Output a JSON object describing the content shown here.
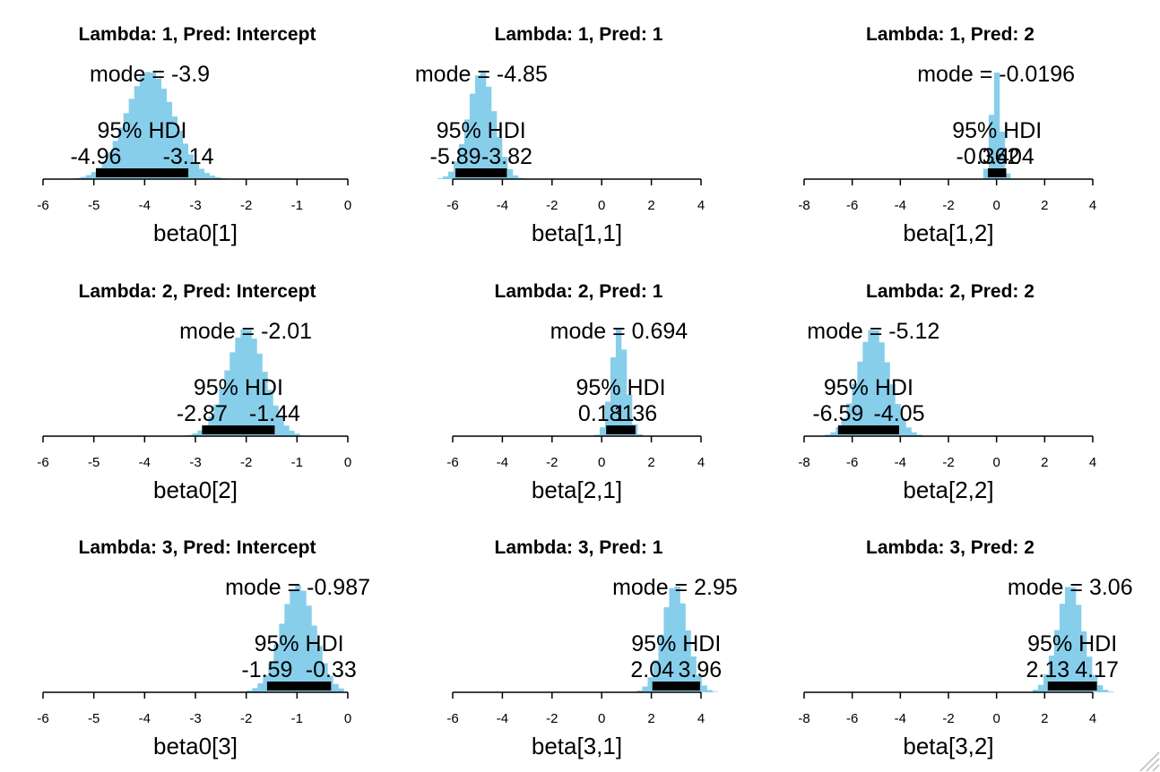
{
  "colors": {
    "histogram": "#87CEEB",
    "hdi_bar": "#000000",
    "axis": "#000000"
  },
  "labels": {
    "mode_prefix": "mode = ",
    "hdi": "95% HDI"
  },
  "icons": {
    "resize_grip": "resize-grip-icon"
  },
  "chart_data": [
    {
      "type": "histogram",
      "title": "Lambda: 1, Pred: Intercept",
      "xlabel": "beta0[1]",
      "xticks": [
        "-6",
        "-5",
        "-4",
        "-3",
        "-2",
        "-1",
        "0"
      ],
      "xlim": [
        -6,
        0
      ],
      "mode": -3.9,
      "mode_label": "-3.9",
      "hdi": [
        -4.96,
        -3.14
      ],
      "hdi_labels": [
        "-4.96",
        "-3.14"
      ],
      "sd": 0.47,
      "dist_range": [
        -5.9,
        -2.2
      ]
    },
    {
      "type": "histogram",
      "title": "Lambda: 1, Pred: 1",
      "xlabel": "beta[1,1]",
      "xticks": [
        "-6",
        "-4",
        "-2",
        "0",
        "2",
        "4"
      ],
      "xlim": [
        -6,
        4
      ],
      "mode": -4.85,
      "mode_label": "-4.85",
      "hdi": [
        -5.89,
        -3.82
      ],
      "hdi_labels": [
        "-5.89",
        "-3.82"
      ],
      "sd": 0.53,
      "dist_range": [
        -7.7,
        -2.7
      ]
    },
    {
      "type": "histogram",
      "title": "Lambda: 1, Pred: 2",
      "xlabel": "beta[1,2]",
      "xticks": [
        "-8",
        "-6",
        "-4",
        "-2",
        "0",
        "2",
        "4"
      ],
      "xlim": [
        -8,
        4
      ],
      "mode": -0.0196,
      "mode_label": "-0.0196",
      "hdi": [
        -0.362,
        0.404
      ],
      "hdi_labels": [
        "-0.362",
        "0.404"
      ],
      "sd": 0.195,
      "dist_range": [
        -1.0,
        1.1
      ]
    },
    {
      "type": "histogram",
      "title": "Lambda: 2, Pred: Intercept",
      "xlabel": "beta0[2]",
      "xticks": [
        "-6",
        "-5",
        "-4",
        "-3",
        "-2",
        "-1",
        "0"
      ],
      "xlim": [
        -6,
        0
      ],
      "mode": -2.01,
      "mode_label": "-2.01",
      "hdi": [
        -2.87,
        -1.44
      ],
      "hdi_labels": [
        "-2.87",
        "-1.44"
      ],
      "sd": 0.37,
      "dist_range": [
        -3.7,
        -1.0
      ]
    },
    {
      "type": "histogram",
      "title": "Lambda: 2, Pred: 1",
      "xlabel": "beta[2,1]",
      "xticks": [
        "-6",
        "-4",
        "-2",
        "0",
        "2",
        "4"
      ],
      "xlim": [
        -6,
        4
      ],
      "mode": 0.694,
      "mode_label": "0.694",
      "hdi": [
        0.181,
        1.36
      ],
      "hdi_labels": [
        "0.181",
        "1.36"
      ],
      "sd": 0.3,
      "dist_range": [
        -0.3,
        2.2
      ]
    },
    {
      "type": "histogram",
      "title": "Lambda: 2, Pred: 2",
      "xlabel": "beta[2,2]",
      "xticks": [
        "-8",
        "-6",
        "-4",
        "-2",
        "0",
        "2",
        "4"
      ],
      "xlim": [
        -8,
        4
      ],
      "mode": -5.12,
      "mode_label": "-5.12",
      "hdi": [
        -6.59,
        -4.05
      ],
      "hdi_labels": [
        "-6.59",
        "-4.05"
      ],
      "sd": 0.65,
      "dist_range": [
        -7.8,
        -3.0
      ]
    },
    {
      "type": "histogram",
      "title": "Lambda: 3, Pred: Intercept",
      "xlabel": "beta0[3]",
      "xticks": [
        "-6",
        "-5",
        "-4",
        "-3",
        "-2",
        "-1",
        "0"
      ],
      "xlim": [
        -6,
        0
      ],
      "mode": -0.987,
      "mode_label": "-0.987",
      "hdi": [
        -1.59,
        -0.33
      ],
      "hdi_labels": [
        "-1.59",
        "-0.33"
      ],
      "sd": 0.33,
      "dist_range": [
        -2.2,
        -0.1
      ]
    },
    {
      "type": "histogram",
      "title": "Lambda: 3, Pred: 1",
      "xlabel": "beta[3,1]",
      "xticks": [
        "-6",
        "-4",
        "-2",
        "0",
        "2",
        "4"
      ],
      "xlim": [
        -6,
        4
      ],
      "mode": 2.95,
      "mode_label": "2.95",
      "hdi": [
        2.04,
        3.96
      ],
      "hdi_labels": [
        "2.04",
        "3.96"
      ],
      "sd": 0.5,
      "dist_range": [
        1.2,
        5.5
      ]
    },
    {
      "type": "histogram",
      "title": "Lambda: 3, Pred: 2",
      "xlabel": "beta[3,2]",
      "xticks": [
        "-8",
        "-6",
        "-4",
        "-2",
        "0",
        "2",
        "4"
      ],
      "xlim": [
        -8,
        4
      ],
      "mode": 3.06,
      "mode_label": "3.06",
      "hdi": [
        2.13,
        4.17
      ],
      "hdi_labels": [
        "2.13",
        "4.17"
      ],
      "sd": 0.53,
      "dist_range": [
        1.5,
        5.3
      ]
    }
  ]
}
